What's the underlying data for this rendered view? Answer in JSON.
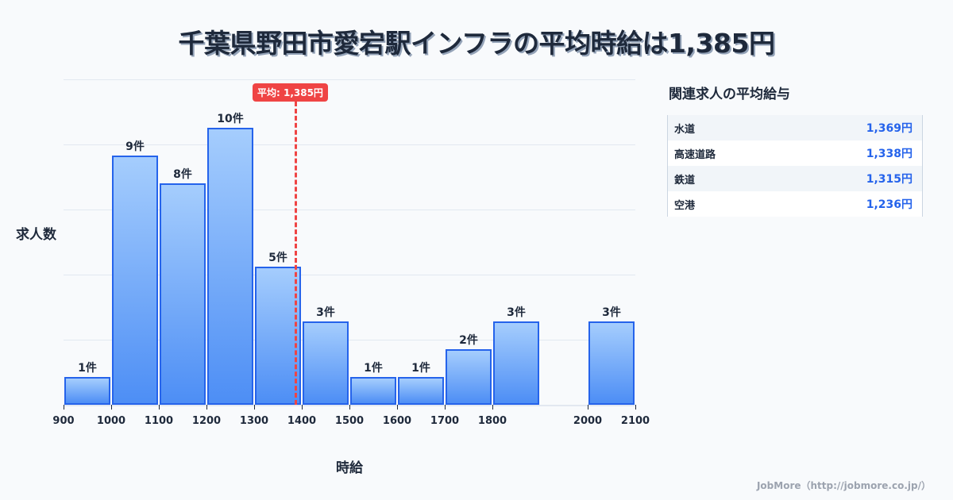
{
  "title": "千葉県野田市愛宕駅インフラの平均時給は1,385円",
  "chart_data": {
    "type": "bar",
    "title": "千葉県野田市愛宕駅インフラの平均時給は1,385円",
    "xlabel": "時給",
    "ylabel": "求人数",
    "bins": [
      {
        "from": 900,
        "to": 1000,
        "count": 1,
        "label": "1件"
      },
      {
        "from": 1000,
        "to": 1100,
        "count": 9,
        "label": "9件"
      },
      {
        "from": 1100,
        "to": 1200,
        "count": 8,
        "label": "8件"
      },
      {
        "from": 1200,
        "to": 1300,
        "count": 10,
        "label": "10件"
      },
      {
        "from": 1300,
        "to": 1400,
        "count": 5,
        "label": "5件"
      },
      {
        "from": 1400,
        "to": 1500,
        "count": 3,
        "label": "3件"
      },
      {
        "from": 1500,
        "to": 1600,
        "count": 1,
        "label": "1件"
      },
      {
        "from": 1600,
        "to": 1700,
        "count": 1,
        "label": "1件"
      },
      {
        "from": 1700,
        "to": 1800,
        "count": 2,
        "label": "2件"
      },
      {
        "from": 1800,
        "to": 1900,
        "count": 3,
        "label": "3件"
      },
      {
        "from": 2000,
        "to": 2100,
        "count": 3,
        "label": "3件"
      }
    ],
    "categories": [
      "900-1000",
      "1000-1100",
      "1100-1200",
      "1200-1300",
      "1300-1400",
      "1400-1500",
      "1500-1600",
      "1600-1700",
      "1700-1800",
      "1800-1900",
      "2000-2100"
    ],
    "values": [
      1,
      9,
      8,
      10,
      5,
      3,
      1,
      1,
      2,
      3,
      3
    ],
    "x_ticks": [
      "900",
      "1000",
      "1100",
      "1200",
      "1300",
      "1400",
      "1500",
      "1600",
      "1700",
      "1800",
      "2000",
      "2100"
    ],
    "xlim": [
      900,
      2100
    ],
    "grid": true,
    "average": {
      "value": 1385,
      "label": "平均: 1,385円",
      "color": "#ef4444"
    },
    "bar_color": "#2563eb"
  },
  "sidebar": {
    "title": "関連求人の平均給与",
    "rows": [
      {
        "name": "水道",
        "value": "1,369円"
      },
      {
        "name": "高速道路",
        "value": "1,338円"
      },
      {
        "name": "鉄道",
        "value": "1,315円"
      },
      {
        "name": "空港",
        "value": "1,236円"
      }
    ]
  },
  "footer": "JobMore（http://jobmore.co.jp/）"
}
